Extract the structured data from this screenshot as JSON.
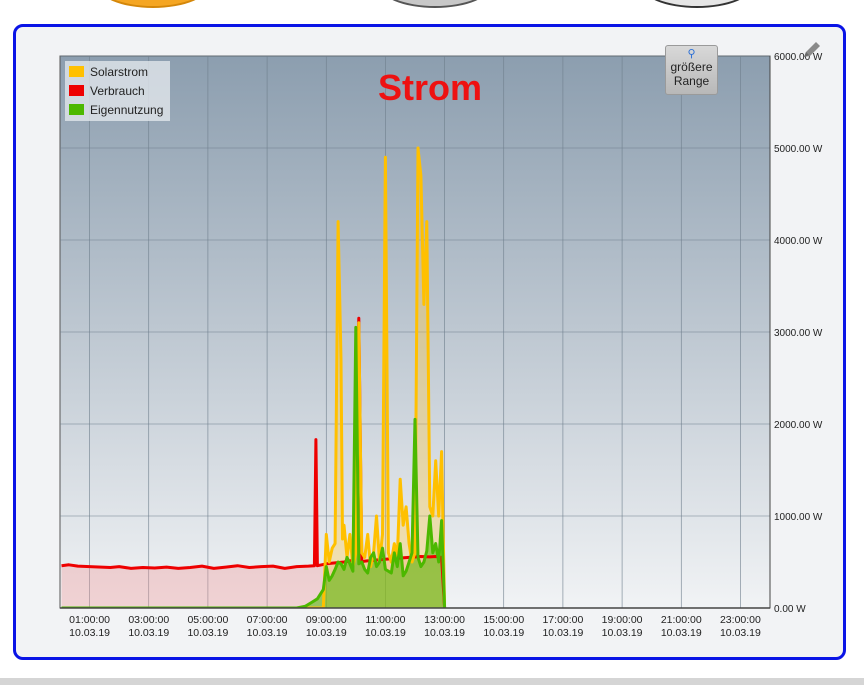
{
  "zoom_button": {
    "icon": "magnifier-icon",
    "line1": "größere",
    "line2": "Range"
  },
  "edit_icon": "pencil-icon",
  "chart_data": {
    "type": "line",
    "title": "Strom",
    "title_color": "#ee1111",
    "xlabel": "",
    "ylabel": "",
    "ylim": [
      0,
      6000
    ],
    "xlim_hours": [
      0,
      24
    ],
    "grid": true,
    "legend_position": "top-left",
    "y_ticks": [
      "0.00 W",
      "1000.00 W",
      "2000.00 W",
      "3000.00 W",
      "4000.00 W",
      "5000.00 W",
      "6000.00 W"
    ],
    "y_tick_values": [
      0,
      1000,
      2000,
      3000,
      4000,
      5000,
      6000
    ],
    "x_ticks": [
      {
        "t": 1,
        "time": "01:00:00",
        "date": "10.03.19"
      },
      {
        "t": 3,
        "time": "03:00:00",
        "date": "10.03.19"
      },
      {
        "t": 5,
        "time": "05:00:00",
        "date": "10.03.19"
      },
      {
        "t": 7,
        "time": "07:00:00",
        "date": "10.03.19"
      },
      {
        "t": 9,
        "time": "09:00:00",
        "date": "10.03.19"
      },
      {
        "t": 11,
        "time": "11:00:00",
        "date": "10.03.19"
      },
      {
        "t": 13,
        "time": "13:00:00",
        "date": "10.03.19"
      },
      {
        "t": 15,
        "time": "15:00:00",
        "date": "10.03.19"
      },
      {
        "t": 17,
        "time": "17:00:00",
        "date": "10.03.19"
      },
      {
        "t": 19,
        "time": "19:00:00",
        "date": "10.03.19"
      },
      {
        "t": 21,
        "time": "21:00:00",
        "date": "10.03.19"
      },
      {
        "t": 23,
        "time": "23:00:00",
        "date": "10.03.19"
      }
    ],
    "series": [
      {
        "name": "Verbrauch",
        "color": "#ee0000",
        "fill": "rgba(240,150,150,0.35)",
        "x": [
          0.05,
          0.3,
          0.6,
          1,
          1.4,
          1.7,
          2,
          2.4,
          2.8,
          3.2,
          3.6,
          4,
          4.4,
          4.8,
          5.2,
          5.6,
          6,
          6.4,
          6.8,
          7.2,
          7.6,
          8,
          8.4,
          8.6,
          8.65,
          8.7,
          8.85,
          9,
          9.3,
          9.6,
          9.9,
          10.1,
          10.2,
          10.3,
          10.6,
          11,
          11.4,
          11.8,
          12.2,
          12.5,
          12.7,
          12.9,
          13.0
        ],
        "y": [
          460,
          470,
          455,
          450,
          445,
          440,
          450,
          430,
          440,
          435,
          445,
          430,
          440,
          455,
          430,
          445,
          460,
          440,
          450,
          455,
          430,
          450,
          455,
          460,
          1830,
          460,
          470,
          480,
          490,
          500,
          520,
          3150,
          500,
          510,
          520,
          530,
          540,
          550,
          560,
          555,
          560,
          550,
          0
        ]
      },
      {
        "name": "Solarstrom",
        "color": "#ffc000",
        "fill": "rgba(255,200,60,0.35)",
        "x": [
          0.05,
          8.9,
          9.0,
          9.1,
          9.2,
          9.3,
          9.4,
          9.5,
          9.55,
          9.6,
          9.7,
          9.8,
          9.9,
          10.0,
          10.1,
          10.2,
          10.3,
          10.4,
          10.5,
          10.6,
          10.7,
          10.8,
          10.9,
          11.0,
          11.1,
          11.2,
          11.3,
          11.4,
          11.5,
          11.6,
          11.7,
          11.8,
          11.9,
          12.0,
          12.1,
          12.2,
          12.3,
          12.4,
          12.5,
          12.6,
          12.7,
          12.8,
          12.9,
          13.0
        ],
        "y": [
          0,
          0,
          800,
          500,
          650,
          700,
          4200,
          2700,
          750,
          900,
          550,
          800,
          450,
          600,
          3100,
          600,
          550,
          800,
          450,
          600,
          1000,
          500,
          800,
          4900,
          600,
          500,
          700,
          550,
          1400,
          900,
          1100,
          700,
          500,
          600,
          5000,
          4700,
          3300,
          4200,
          1100,
          1000,
          1600,
          1000,
          1700,
          0
        ]
      },
      {
        "name": "Eigennutzung",
        "color": "#4cb800",
        "fill": "rgba(76,184,0,0.55)",
        "x": [
          0.05,
          8,
          8.3,
          8.5,
          8.7,
          8.9,
          9.0,
          9.1,
          9.2,
          9.3,
          9.4,
          9.5,
          9.6,
          9.7,
          9.8,
          9.9,
          10.0,
          10.1,
          10.2,
          10.3,
          10.4,
          10.5,
          10.6,
          10.7,
          10.8,
          10.9,
          11.0,
          11.1,
          11.2,
          11.3,
          11.4,
          11.5,
          11.6,
          11.7,
          11.8,
          11.9,
          12.0,
          12.1,
          12.2,
          12.3,
          12.4,
          12.5,
          12.6,
          12.7,
          12.8,
          12.9,
          13.0
        ],
        "y": [
          0,
          0,
          20,
          60,
          100,
          200,
          450,
          300,
          350,
          420,
          500,
          480,
          420,
          550,
          480,
          400,
          3050,
          480,
          500,
          420,
          380,
          550,
          600,
          450,
          500,
          650,
          420,
          400,
          380,
          600,
          450,
          700,
          350,
          400,
          500,
          600,
          2050,
          550,
          450,
          500,
          620,
          1000,
          600,
          700,
          500,
          950,
          0
        ]
      }
    ]
  }
}
